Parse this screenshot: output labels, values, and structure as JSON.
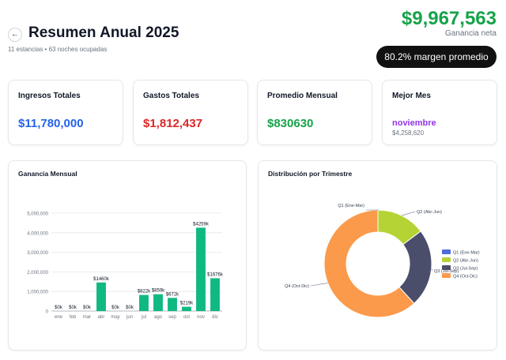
{
  "header": {
    "title": "Resumen Anual 2025",
    "subtitle": "11 estancias • 63 noches ocupadas",
    "back_icon": "←",
    "net_profit": "$9,967,563",
    "net_profit_label": "Ganancia neta",
    "margin_label": "80.2% margen promedio"
  },
  "stats": {
    "income": {
      "label": "Ingresos Totales",
      "value": "$11,780,000",
      "color": "#2563eb"
    },
    "expenses": {
      "label": "Gastos Totales",
      "value": "$1,812,437",
      "color": "#dc2626"
    },
    "monthly_avg": {
      "label": "Promedio Mensual",
      "value": "$830630",
      "color": "#16a34a"
    },
    "best_month": {
      "label": "Mejor Mes",
      "name": "noviembre",
      "amount": "$4,258,620",
      "color": "#9333ea"
    }
  },
  "colors": {
    "bar": "#10b981",
    "profit": "#16a34a"
  },
  "chart_data": [
    {
      "type": "bar",
      "title": "Ganancia Mensual",
      "categories": [
        "ene",
        "feb",
        "mar",
        "abr",
        "may",
        "jun",
        "jul",
        "ago",
        "sep",
        "oct",
        "nov",
        "dic"
      ],
      "values": [
        0,
        0,
        0,
        1460000,
        0,
        0,
        822000,
        859000,
        672000,
        219000,
        4259000,
        1676000
      ],
      "data_labels": [
        "$0k",
        "$0k",
        "$0k",
        "$1460k",
        "$0k",
        "$0k",
        "$822k",
        "$859k",
        "$672k",
        "$219k",
        "$4259k",
        "$1676k"
      ],
      "yticks": [
        0,
        1000000,
        2000000,
        3000000,
        4000000,
        5000000
      ],
      "ytick_labels": [
        "0",
        "1,000,000",
        "2,000,000",
        "3,000,000",
        "4,000,000",
        "5,000,000"
      ],
      "ylim": [
        0,
        5000000
      ],
      "grid": true
    },
    {
      "type": "pie",
      "title": "Distribución por Trimestre",
      "labels": [
        "Q1 (Ene-Mar)",
        "Q2 (Abr-Jun)",
        "Q3 (Jul-Sep)",
        "Q4 (Oct-Dic)"
      ],
      "values": [
        0,
        1460000,
        2353000,
        6154000
      ],
      "colors": [
        "#4f6bdc",
        "#b5d334",
        "#4b4e6b",
        "#fb9a4b"
      ],
      "legend": "right"
    }
  ]
}
